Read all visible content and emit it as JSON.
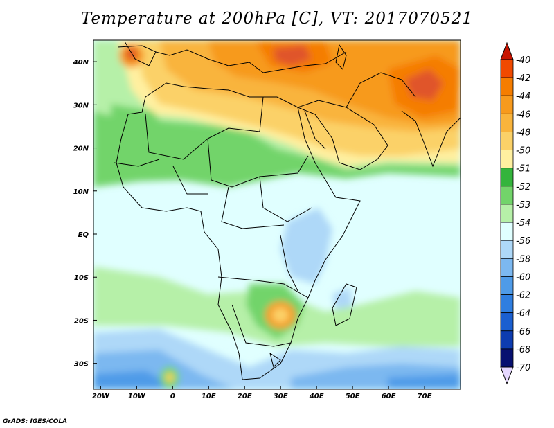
{
  "title": "Temperature at 200hPa [C], VT: 2017070521",
  "credit": "GrADS: IGES/COLA",
  "map": {
    "lon_range": [
      -22,
      80
    ],
    "lat_range": [
      -36,
      45
    ],
    "lon_ticks": [
      {
        "value": -20,
        "label": "20W"
      },
      {
        "value": -10,
        "label": "10W"
      },
      {
        "value": 0,
        "label": "0"
      },
      {
        "value": 10,
        "label": "10E"
      },
      {
        "value": 20,
        "label": "20E"
      },
      {
        "value": 30,
        "label": "30E"
      },
      {
        "value": 40,
        "label": "40E"
      },
      {
        "value": 50,
        "label": "50E"
      },
      {
        "value": 60,
        "label": "60E"
      },
      {
        "value": 70,
        "label": "70E"
      }
    ],
    "lat_ticks": [
      {
        "value": 40,
        "label": "40N"
      },
      {
        "value": 30,
        "label": "30N"
      },
      {
        "value": 20,
        "label": "20N"
      },
      {
        "value": 10,
        "label": "10N"
      },
      {
        "value": 0,
        "label": "EQ"
      },
      {
        "value": -10,
        "label": "10S"
      },
      {
        "value": -20,
        "label": "20S"
      },
      {
        "value": -30,
        "label": "30S"
      }
    ]
  },
  "colorbar": {
    "levels": [
      {
        "label": "-40",
        "color": "#e02a00"
      },
      {
        "label": "-42",
        "color": "#f04a00"
      },
      {
        "label": "-44",
        "color": "#f57d00"
      },
      {
        "label": "-46",
        "color": "#f79a1d"
      },
      {
        "label": "-48",
        "color": "#f9b43c"
      },
      {
        "label": "-50",
        "color": "#fbd168"
      },
      {
        "label": "-51",
        "color": "#fff0a0"
      },
      {
        "label": "-52",
        "color": "#34b43c"
      },
      {
        "label": "-53",
        "color": "#72d46a"
      },
      {
        "label": "-54",
        "color": "#b6f0a8"
      },
      {
        "label": "-56",
        "color": "#e0ffff"
      },
      {
        "label": "-58",
        "color": "#aed8f8"
      },
      {
        "label": "-60",
        "color": "#7cb8f0"
      },
      {
        "label": "-62",
        "color": "#4f9be8"
      },
      {
        "label": "-64",
        "color": "#2f7ee0"
      },
      {
        "label": "-66",
        "color": "#1a5fd0"
      },
      {
        "label": "-68",
        "color": "#0d3cb0"
      },
      {
        "label": "-70",
        "color": "#071070"
      }
    ],
    "top_arrow_color": "#c81400",
    "bottom_arrow_color": "#e6d8ff"
  }
}
